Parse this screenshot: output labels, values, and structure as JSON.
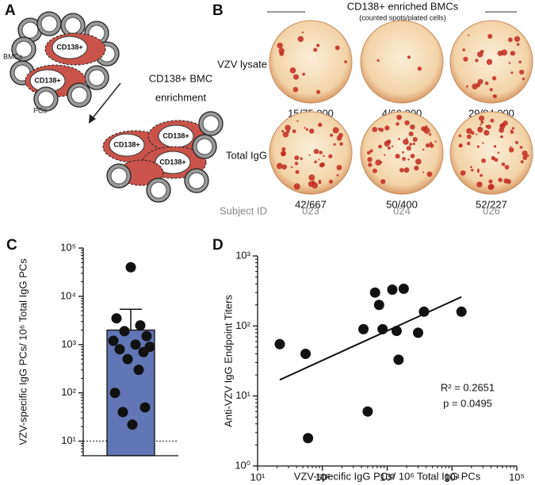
{
  "panel_a": {
    "letter": "A",
    "bmc_label": "BMCs",
    "pc_label": "PCs",
    "marker": "CD138+",
    "step": [
      "CD138+ BMC",
      "enrichment"
    ]
  },
  "panel_b": {
    "letter": "B",
    "title": "CD138+ enriched BMCs",
    "subtitle": "(counted spots/plated cells)",
    "rows": [
      "VZV lysate",
      "Total IgG"
    ],
    "counts": [
      [
        "15/75,000",
        "4/66,000",
        "29/84,000"
      ],
      [
        "42/667",
        "50/400",
        "52/227"
      ]
    ],
    "subject_label": "Subject ID",
    "subjects": [
      "023",
      "024",
      "026"
    ]
  },
  "chart_data": [
    {
      "type": "bar_dots",
      "letter": "C",
      "ylabel": "VZV-specific IgG PCs/ 10⁶ Total IgG PCs",
      "log_y": true,
      "ylim": [
        5,
        100000
      ],
      "yticks": [
        {
          "value": 10,
          "label": "10¹"
        },
        {
          "value": 100,
          "label": "10²"
        },
        {
          "value": 1000,
          "label": "10³"
        },
        {
          "value": 10000,
          "label": "10⁴"
        },
        {
          "value": 100000,
          "label": "10⁵"
        }
      ],
      "values": [
        2000
      ],
      "errors": [
        3400
      ],
      "color": "#6275b4",
      "reference_line": 10,
      "points": [
        40000,
        3500,
        2500,
        1900,
        1500,
        1200,
        1000,
        900,
        800,
        700,
        500,
        300,
        100,
        50,
        40,
        22
      ]
    },
    {
      "type": "scatter",
      "letter": "D",
      "xlabel": "VZV-specific IgG PCs/ 10⁶ Total IgG PCs",
      "ylabel": "Anti-VZV IgG Endpoint Titers",
      "log_x": true,
      "log_y": true,
      "xlim": [
        10,
        100000
      ],
      "ylim": [
        1,
        1000
      ],
      "xticks": [
        {
          "value": 10,
          "label": "10¹"
        },
        {
          "value": 100,
          "label": "10²"
        },
        {
          "value": 1000,
          "label": "10³"
        },
        {
          "value": 10000,
          "label": "10⁴"
        },
        {
          "value": 100000,
          "label": "10⁵"
        }
      ],
      "yticks": [
        {
          "value": 1,
          "label": "10⁰"
        },
        {
          "value": 10,
          "label": "10¹"
        },
        {
          "value": 100,
          "label": "10²"
        },
        {
          "value": 1000,
          "label": "10³"
        }
      ],
      "x": [
        22,
        55,
        60,
        430,
        500,
        650,
        750,
        850,
        1200,
        1400,
        1500,
        1800,
        3000,
        3700,
        14000
      ],
      "y": [
        55,
        40,
        2.5,
        90,
        6,
        300,
        200,
        90,
        330,
        85,
        33,
        340,
        80,
        160,
        160
      ],
      "fit": {
        "x": [
          22,
          14000
        ],
        "y": [
          17,
          260
        ]
      },
      "annotations": [
        "R² = 0.2651",
        "p = 0.0495"
      ]
    }
  ]
}
